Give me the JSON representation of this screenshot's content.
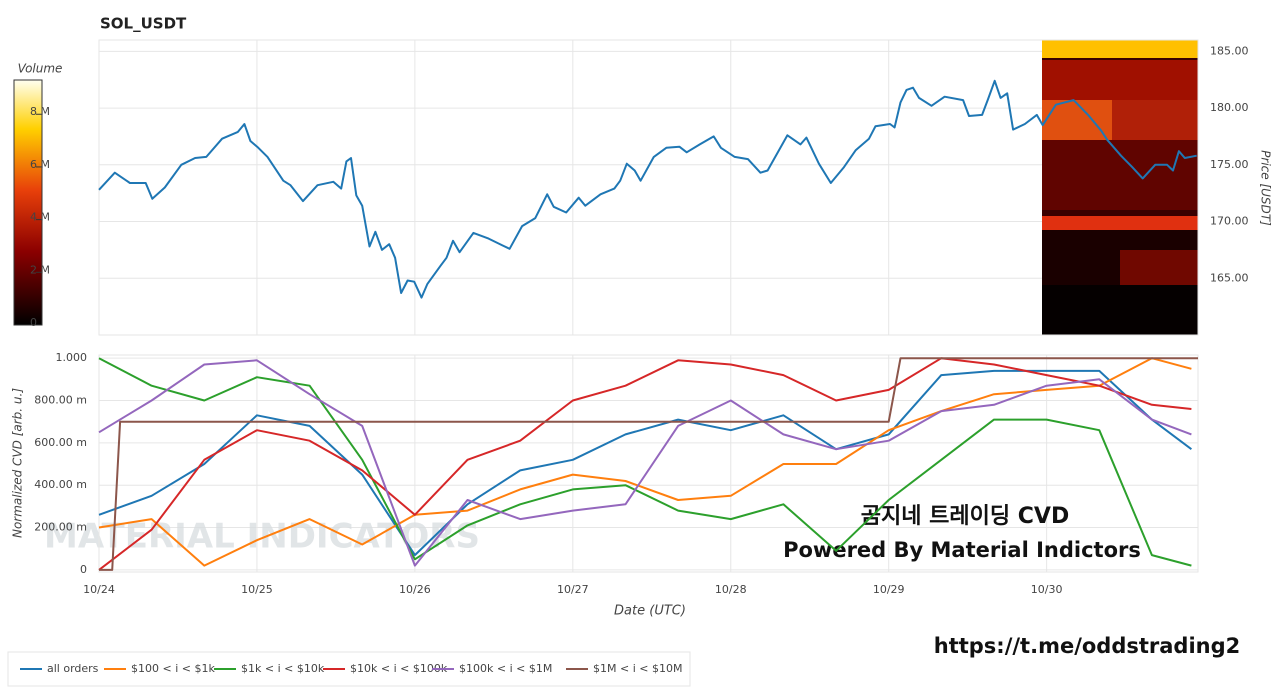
{
  "chart_data": [
    {
      "type": "line",
      "title": "SOL_USDT",
      "y_label": "Price [USDT]",
      "x": [
        0,
        2.4,
        4.7,
        7.1,
        8.1,
        10.0,
        12.5,
        14.6,
        16.3,
        18.7,
        21.1,
        22.1,
        23.0,
        24.2,
        25.6,
        28.0,
        29.1,
        31.0,
        33.2,
        35.6,
        36.8,
        37.6,
        38.3,
        39.1,
        40.0,
        41.1,
        42.0,
        43.0,
        44.1,
        45.0,
        45.9,
        46.9,
        47.9,
        49.0,
        49.9,
        51.9,
        52.8,
        53.8,
        54.8,
        56.9,
        59.2,
        61.3,
        62.4,
        64.3,
        66.3,
        68.1,
        69.1,
        71.0,
        72.9,
        73.9,
        76.2,
        78.3,
        79.2,
        80.2,
        81.4,
        82.3,
        84.3,
        86.2,
        88.2,
        89.3,
        91.3,
        93.4,
        94.5,
        96.6,
        98.6,
        100.5,
        101.6,
        104.6,
        106.6,
        107.5,
        109.4,
        111.2,
        113.2,
        115.0,
        117.0,
        118.0,
        120.2,
        120.9,
        121.8,
        122.7,
        123.7,
        124.6,
        126.5,
        128.5,
        131.3,
        132.2,
        134.2,
        135.1,
        136.1,
        137.0,
        138.0,
        138.9,
        140.7,
        142.5,
        143.4,
        145.4,
        148.1,
        150.3,
        152.3,
        153.2,
        155.3,
        157.0,
        158.6,
        160.5,
        162.3,
        163.2,
        164.1,
        165.0,
        166.8
      ],
      "series": [
        {
          "color": "#1f77b4",
          "values": [
            172.8,
            174.3,
            173.4,
            173.4,
            172.0,
            173.0,
            175.0,
            175.6,
            175.7,
            177.3,
            177.9,
            178.6,
            177.1,
            176.5,
            175.7,
            173.6,
            173.2,
            171.8,
            173.2,
            173.5,
            172.9,
            175.3,
            175.6,
            172.3,
            171.4,
            167.8,
            169.1,
            167.5,
            168.0,
            166.8,
            163.7,
            164.8,
            164.7,
            163.3,
            164.5,
            166.1,
            166.8,
            168.3,
            167.3,
            169.0,
            168.5,
            167.9,
            167.6,
            169.6,
            170.3,
            172.4,
            171.3,
            170.8,
            172.1,
            171.4,
            172.4,
            172.9,
            173.6,
            175.1,
            174.5,
            173.6,
            175.7,
            176.5,
            176.6,
            176.1,
            176.8,
            177.5,
            176.5,
            175.7,
            175.5,
            174.3,
            174.5,
            177.6,
            176.8,
            177.4,
            175.1,
            173.4,
            174.8,
            176.3,
            177.3,
            178.4,
            178.6,
            178.3,
            180.5,
            181.6,
            181.8,
            180.9,
            180.2,
            181.0,
            180.7,
            179.3,
            179.4,
            180.8,
            182.4,
            180.9,
            181.3,
            178.1,
            178.6,
            179.4,
            178.5,
            180.3,
            180.7,
            179.4,
            178.0,
            177.2,
            175.8,
            174.8,
            173.8,
            175.0,
            175.0,
            174.5,
            176.2,
            175.6,
            175.8
          ]
        }
      ],
      "xlim": [
        0,
        167
      ],
      "ylim": [
        160,
        186
      ],
      "yticks": [
        {
          "value": 165,
          "label": "165.00"
        },
        {
          "value": 170,
          "label": "170.00"
        },
        {
          "value": 175,
          "label": "175.00"
        },
        {
          "value": 180,
          "label": "180.00"
        },
        {
          "value": 185,
          "label": "185.00"
        }
      ],
      "grid": true,
      "colorbar": {
        "label": "Volume",
        "lim": [
          0,
          9300000
        ],
        "ticks": [
          0,
          {
            "value": 2000000,
            "label": "2 M"
          },
          {
            "value": 4000000,
            "label": "4 M"
          },
          {
            "value": 6000000,
            "label": "6 M"
          },
          {
            "value": 8000000,
            "label": "8 M"
          }
        ]
      }
    },
    {
      "type": "line",
      "y_label": "Normalized CVD [arb. u.]",
      "x_label": "Date (UTC)",
      "x": [
        0,
        8,
        16,
        24,
        32,
        40,
        48,
        56,
        64,
        72,
        80,
        88,
        96,
        104,
        112,
        120,
        128,
        136,
        144,
        152,
        160,
        166
      ],
      "xlim": [
        0,
        167
      ],
      "ylim": [
        -0.01,
        1.015
      ],
      "xticks": [
        {
          "value": 0,
          "label": "10/24"
        },
        {
          "value": 24,
          "label": "10/25"
        },
        {
          "value": 48,
          "label": "10/26"
        },
        {
          "value": 72,
          "label": "10/27"
        },
        {
          "value": 96,
          "label": "10/28"
        },
        {
          "value": 120,
          "label": "10/29"
        },
        {
          "value": 144,
          "label": "10/30"
        }
      ],
      "yticks": [
        0,
        {
          "value": 0.2,
          "label": "200.00 m"
        },
        {
          "value": 0.4,
          "label": "400.00 m"
        },
        {
          "value": 0.6,
          "label": "600.00 m"
        },
        {
          "value": 0.8,
          "label": "800.00 m"
        },
        {
          "value": 1,
          "label": "1.000"
        }
      ],
      "grid": true,
      "series": [
        {
          "name": "all orders",
          "color": "#1f77b4",
          "values": [
            0.26,
            0.35,
            0.5,
            0.73,
            0.68,
            0.45,
            0.07,
            0.31,
            0.47,
            0.52,
            0.64,
            0.71,
            0.66,
            0.73,
            0.57,
            0.64,
            0.92,
            0.94,
            0.94,
            0.94,
            0.71,
            0.57
          ]
        },
        {
          "name": "$100 < i < $1k",
          "color": "#ff7f0e",
          "values": [
            0.2,
            0.24,
            0.02,
            0.14,
            0.24,
            0.12,
            0.26,
            0.28,
            0.38,
            0.45,
            0.42,
            0.33,
            0.35,
            0.5,
            0.5,
            0.66,
            0.75,
            0.83,
            0.85,
            0.87,
            1.0,
            0.95
          ]
        },
        {
          "name": "$1k < i < $10k",
          "color": "#2ca02c",
          "values": [
            1.0,
            0.87,
            0.8,
            0.91,
            0.87,
            0.52,
            0.05,
            0.21,
            0.31,
            0.38,
            0.4,
            0.28,
            0.24,
            0.31,
            0.09,
            0.33,
            0.52,
            0.71,
            0.71,
            0.66,
            0.07,
            0.02
          ]
        },
        {
          "name": "$10k < i < $100k",
          "color": "#d62728",
          "values": [
            0,
            0.19,
            0.52,
            0.66,
            0.61,
            0.47,
            0.26,
            0.52,
            0.61,
            0.8,
            0.87,
            0.99,
            0.97,
            0.92,
            0.8,
            0.85,
            1.0,
            0.97,
            0.92,
            0.87,
            0.78,
            0.76
          ]
        },
        {
          "name": "$100k < i < $1M",
          "color": "#9467bd",
          "values": [
            0.65,
            0.8,
            0.97,
            0.99,
            0.83,
            0.68,
            0.02,
            0.33,
            0.24,
            0.28,
            0.31,
            0.68,
            0.8,
            0.64,
            0.57,
            0.61,
            0.75,
            0.78,
            0.87,
            0.9,
            0.71,
            0.64
          ]
        },
        {
          "name": "$1M < i < $10M",
          "color": "#8c564b",
          "x": [
            0,
            2,
            3.2,
            120,
            121.8,
            167
          ],
          "values": [
            0,
            0,
            0.7,
            0.7,
            1.0,
            1.0
          ]
        }
      ]
    }
  ],
  "annotations": {
    "watermark": "MATERIAL INDICATORS",
    "overlay_title": "곰지네 트레이딩 CVD",
    "overlay_subtitle": "Powered By Material Indictors",
    "link": "https://t.me/oddstrading2"
  }
}
